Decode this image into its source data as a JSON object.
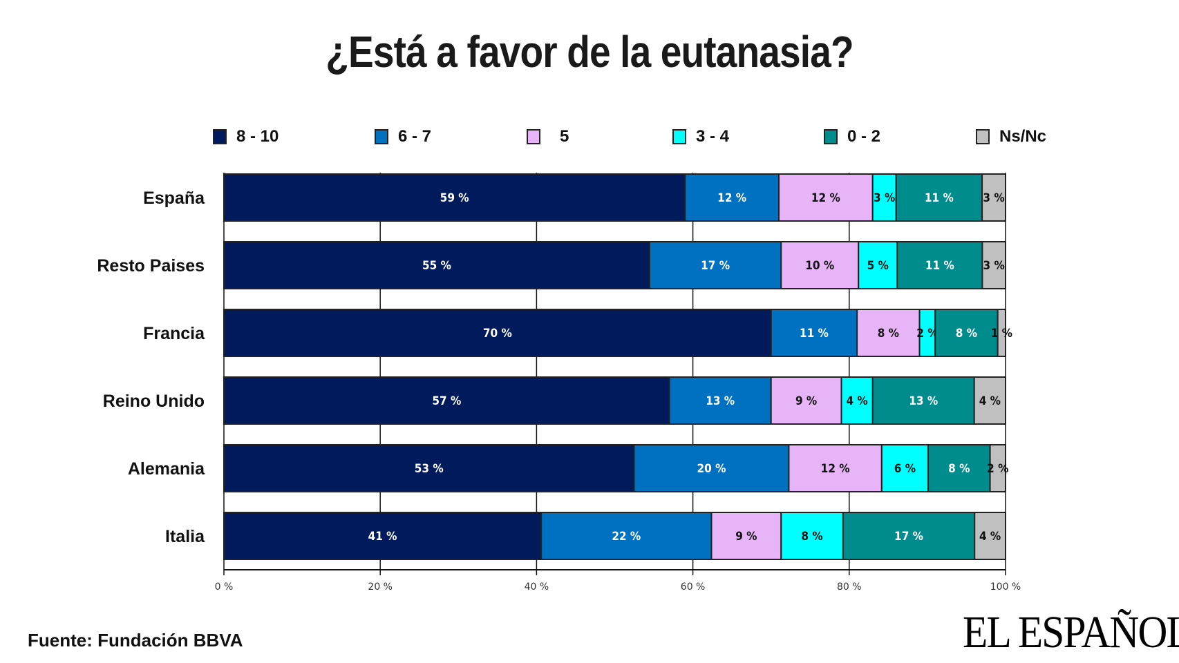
{
  "title": "¿Está a favor de la eutanasia?",
  "source": "Fuente: Fundación BBVA",
  "logo": "EL ESPAÑOL",
  "chart_data": {
    "type": "bar",
    "orientation": "horizontal",
    "stacked": true,
    "categories": [
      "España",
      "Resto Paises",
      "Francia",
      "Reino Unido",
      "Alemania",
      "Italia"
    ],
    "series": [
      {
        "name": "8 - 10",
        "color": "#001a5c",
        "label_color": "#ffffff",
        "values": [
          59,
          55,
          70,
          57,
          53,
          41
        ]
      },
      {
        "name": "6 - 7",
        "color": "#0070c0",
        "label_color": "#ffffff",
        "values": [
          12,
          17,
          11,
          13,
          20,
          22
        ]
      },
      {
        "name": "5",
        "color": "#e8b4f8",
        "label_color": "#111111",
        "values": [
          12,
          10,
          8,
          9,
          12,
          9
        ]
      },
      {
        "name": "3 - 4",
        "color": "#00ffff",
        "label_color": "#111111",
        "values": [
          3,
          5,
          2,
          4,
          6,
          8
        ]
      },
      {
        "name": "0 - 2",
        "color": "#008c8c",
        "label_color": "#ffffff",
        "values": [
          11,
          11,
          8,
          13,
          8,
          17
        ]
      },
      {
        "name": "Ns/Nc",
        "color": "#c0c0c0",
        "label_color": "#111111",
        "values": [
          3,
          3,
          1,
          4,
          2,
          4
        ]
      }
    ],
    "value_suffix": " %",
    "xlim": [
      0,
      100
    ],
    "xticks": [
      "0 %",
      "20 %",
      "40 %",
      "60 %",
      "80 %",
      "100 %"
    ],
    "grid": true,
    "legend": "top"
  }
}
